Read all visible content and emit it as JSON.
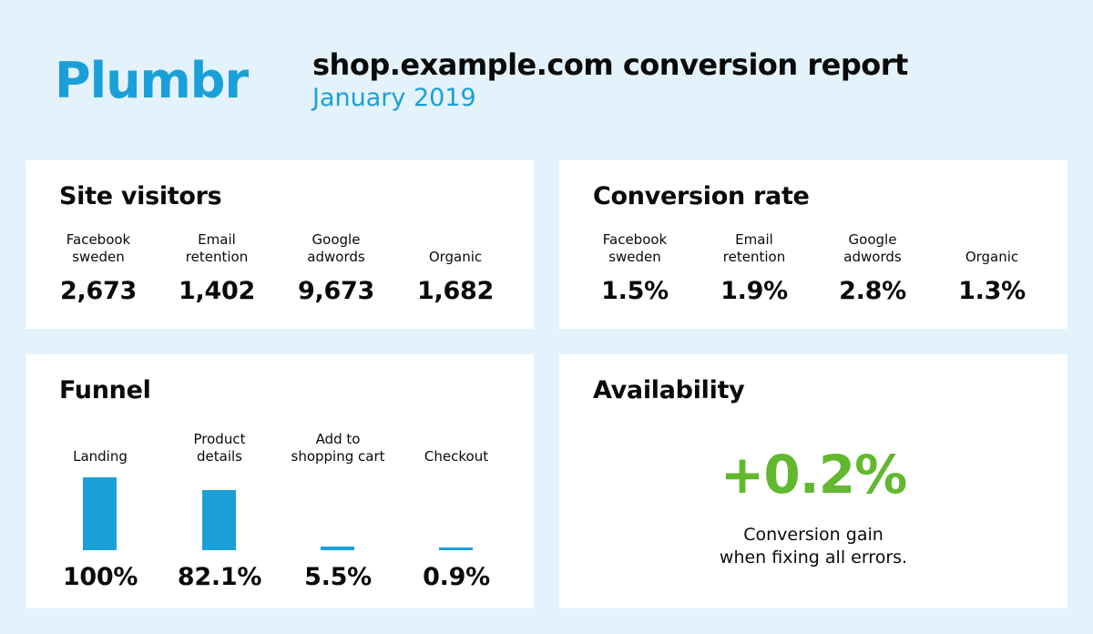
{
  "header": {
    "logo_text": "Plumbr",
    "title": "shop.example.com conversion report",
    "subtitle": "January 2019"
  },
  "colors": {
    "accent": "#1aa0d8",
    "gain": "#62b82f",
    "background": "#e3f2fb"
  },
  "site_visitors": {
    "title": "Site visitors",
    "metrics": [
      {
        "label": "Facebook\nsweden",
        "value": "2,673"
      },
      {
        "label": "Email\nretention",
        "value": "1,402"
      },
      {
        "label": "Google\nadwords",
        "value": "9,673"
      },
      {
        "label": "Organic",
        "value": "1,682"
      }
    ]
  },
  "conversion_rate": {
    "title": "Conversion rate",
    "metrics": [
      {
        "label": "Facebook\nsweden",
        "value": "1.5%"
      },
      {
        "label": "Email\nretention",
        "value": "1.9%"
      },
      {
        "label": "Google\nadwords",
        "value": "2.8%"
      },
      {
        "label": "Organic",
        "value": "1.3%"
      }
    ]
  },
  "funnel": {
    "title": "Funnel",
    "steps": [
      {
        "label": "Landing",
        "value": "100%",
        "level": 100
      },
      {
        "label": "Product\ndetails",
        "value": "82.1%",
        "level": 82.1
      },
      {
        "label": "Add to\nshopping cart",
        "value": "5.5%",
        "level": 5.5
      },
      {
        "label": "Checkout",
        "value": "0.9%",
        "level": 0.9
      }
    ]
  },
  "availability": {
    "title": "Availability",
    "gain": "+0.2%",
    "caption": "Conversion gain\nwhen fixing all errors."
  }
}
